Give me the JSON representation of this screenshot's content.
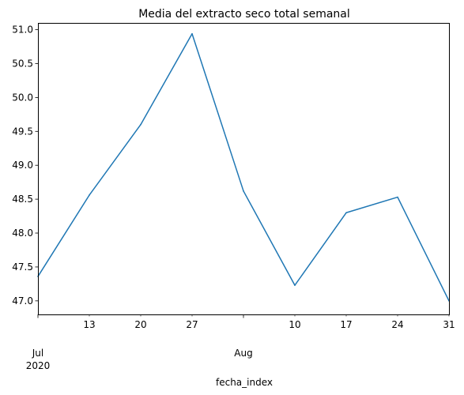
{
  "chart_data": {
    "type": "line",
    "title": "Media del extracto seco total semanal",
    "xlabel": "fecha_index",
    "ylabel": "",
    "x": [
      "2020-07-06",
      "2020-07-13",
      "2020-07-20",
      "2020-07-27",
      "2020-08-03",
      "2020-08-10",
      "2020-08-17",
      "2020-08-24",
      "2020-08-31"
    ],
    "series": [
      {
        "values": [
          47.36,
          48.56,
          49.6,
          50.94,
          48.62,
          47.23,
          48.3,
          48.53,
          47.0
        ]
      }
    ],
    "ylim": [
      46.8,
      51.1
    ],
    "xlim": [
      "2020-07-06",
      "2020-08-31"
    ],
    "yticks": [
      47.0,
      47.5,
      48.0,
      48.5,
      49.0,
      49.5,
      50.0,
      50.5,
      51.0
    ],
    "ytick_labels": [
      "47.0",
      "47.5",
      "48.0",
      "48.5",
      "49.0",
      "49.5",
      "50.0",
      "50.5",
      "51.0"
    ],
    "minor_xticks": [
      {
        "date": "2020-07-13",
        "label": "13"
      },
      {
        "date": "2020-07-20",
        "label": "20"
      },
      {
        "date": "2020-07-27",
        "label": "27"
      },
      {
        "date": "2020-08-10",
        "label": "10"
      },
      {
        "date": "2020-08-17",
        "label": "17"
      },
      {
        "date": "2020-08-24",
        "label": "24"
      },
      {
        "date": "2020-08-31",
        "label": "31"
      }
    ],
    "major_xticks": [
      {
        "date": "2020-07-06",
        "label": "Jul",
        "sublabel": "2020"
      },
      {
        "date": "2020-08-03",
        "label": "Aug",
        "sublabel": ""
      }
    ],
    "line_color": "#1f77b4",
    "grid": false,
    "legend": "none"
  }
}
